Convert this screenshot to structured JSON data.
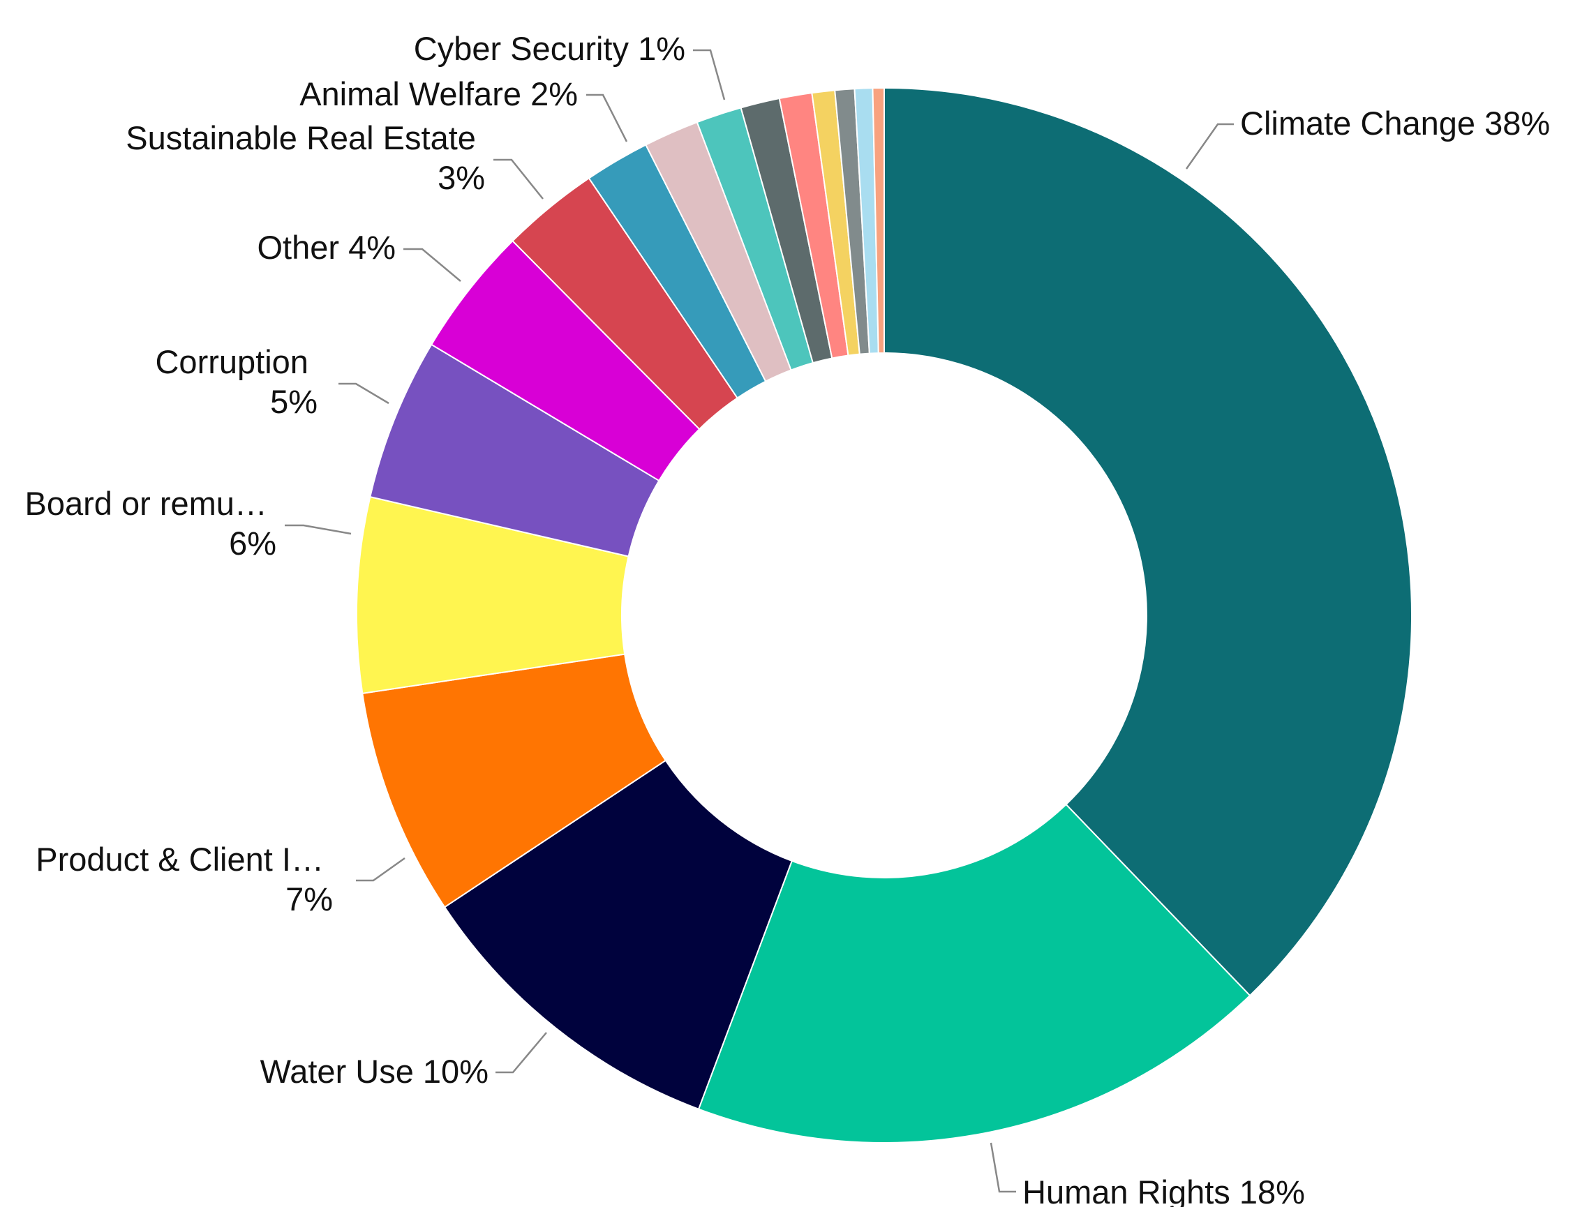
{
  "chart_data": {
    "type": "pie",
    "variant": "donut",
    "title": "",
    "slices": [
      {
        "name": "Climate Change",
        "value": 38,
        "pct_label": "38%",
        "color": "#0d6d74"
      },
      {
        "name": "Human Rights",
        "value": 18,
        "pct_label": "18%",
        "color": "#03c49a"
      },
      {
        "name": "Water Use",
        "value": 10,
        "pct_label": "10%",
        "color": "#00023d"
      },
      {
        "name": "Product & Client I…",
        "value": 7,
        "pct_label": "7%",
        "color": "#ff7502"
      },
      {
        "name": "Board or remu…",
        "value": 6,
        "pct_label": "6%",
        "color": "#fff550"
      },
      {
        "name": "Corruption",
        "value": 5,
        "pct_label": "5%",
        "color": "#7751c0"
      },
      {
        "name": "Other",
        "value": 4,
        "pct_label": "4%",
        "color": "#d800d6"
      },
      {
        "name": "Sustainable Real Estate",
        "value": 3,
        "pct_label": "3%",
        "color": "#d64550"
      },
      {
        "name": "Animal Welfare",
        "value": 2,
        "pct_label": "2%",
        "color": "#369bba"
      },
      {
        "name": "",
        "value": 1.7,
        "pct_label": "",
        "color": "#dfbfc2"
      },
      {
        "name": "",
        "value": 1.4,
        "pct_label": "",
        "color": "#4dc5bc"
      },
      {
        "name": "Cyber Security",
        "value": 1.2,
        "pct_label": "1%",
        "color": "#5d6b6c"
      },
      {
        "name": "",
        "value": 1.0,
        "pct_label": "",
        "color": "#ff8581"
      },
      {
        "name": "",
        "value": 0.7,
        "pct_label": "",
        "color": "#f4d261"
      },
      {
        "name": "",
        "value": 0.6,
        "pct_label": "",
        "color": "#818b8c"
      },
      {
        "name": "",
        "value": 0.55,
        "pct_label": "",
        "color": "#a9ddf0"
      },
      {
        "name": "",
        "value": 0.35,
        "pct_label": "",
        "color": "#f8a27f"
      }
    ],
    "legend": "none",
    "data_labels": "outside with leader lines"
  }
}
